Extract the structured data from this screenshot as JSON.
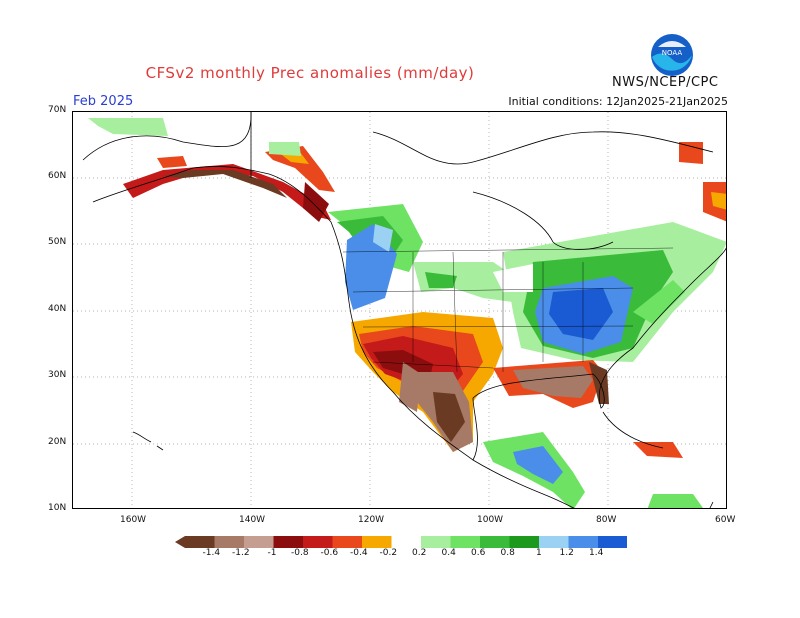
{
  "header": {
    "title": "CFSv2 monthly Prec anomalies (mm/day)",
    "month": "Feb 2025",
    "initial_conditions": "Initial conditions: 12Jan2025-21Jan2025",
    "org": "NWS/NCEP/CPC",
    "logo_text": "NOAA"
  },
  "axes": {
    "lat_labels": [
      "70N",
      "60N",
      "50N",
      "40N",
      "30N",
      "20N",
      "10N"
    ],
    "lon_labels": [
      "160W",
      "140W",
      "120W",
      "100W",
      "80W",
      "60W"
    ]
  },
  "legend": {
    "labels": [
      "-1.4",
      "-1.2",
      "-1",
      "-0.8",
      "-0.6",
      "-0.4",
      "-0.2",
      "0.2",
      "0.4",
      "0.6",
      "0.8",
      "1",
      "1.2",
      "1.4"
    ],
    "colors": [
      "#6b3a22",
      "#a67a67",
      "#c69e91",
      "#8b0d0d",
      "#c41a1a",
      "#e8481b",
      "#f7a800",
      "#ffffff",
      "#a7ef9e",
      "#6ee262",
      "#3abb3a",
      "#1d9a1d",
      "#9bd2f3",
      "#4a8eea",
      "#1a5ad2"
    ]
  },
  "map": {
    "region": "North America",
    "lat_range": [
      10,
      70
    ],
    "lon_range": [
      -170,
      -60
    ]
  }
}
